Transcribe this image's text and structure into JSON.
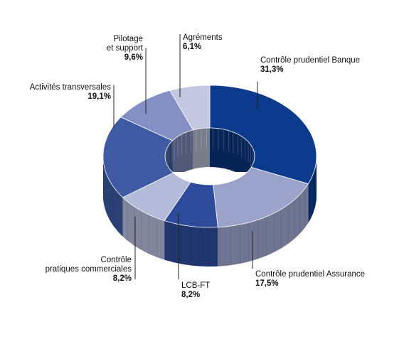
{
  "chart_data": {
    "type": "pie",
    "variant": "3d-donut",
    "title": "",
    "legend": "none",
    "unit": "%",
    "slices": [
      {
        "label": "Contrôle prudentiel Banque",
        "value": 31.3,
        "value_label": "31,3%",
        "color": "#0c3a8c"
      },
      {
        "label": "Contrôle prudentiel Assurance",
        "value": 17.5,
        "value_label": "17,5%",
        "color": "#9ba3cb"
      },
      {
        "label": "LCB-FT",
        "value": 8.2,
        "value_label": "8,2%",
        "color": "#2e4a9a"
      },
      {
        "label": "Contrôle pratiques commerciales",
        "value": 8.2,
        "value_label": "8,2%",
        "color": "#b4bad9"
      },
      {
        "label": "Activités transversales",
        "value": 19.1,
        "value_label": "19,1%",
        "color": "#3d5aa2"
      },
      {
        "label": "Pilotage et support",
        "value": 9.6,
        "value_label": "9,6%",
        "color": "#8490c3"
      },
      {
        "label": "Agréments",
        "value": 6.1,
        "value_label": "6,1%",
        "color": "#c3c8e0"
      }
    ]
  }
}
